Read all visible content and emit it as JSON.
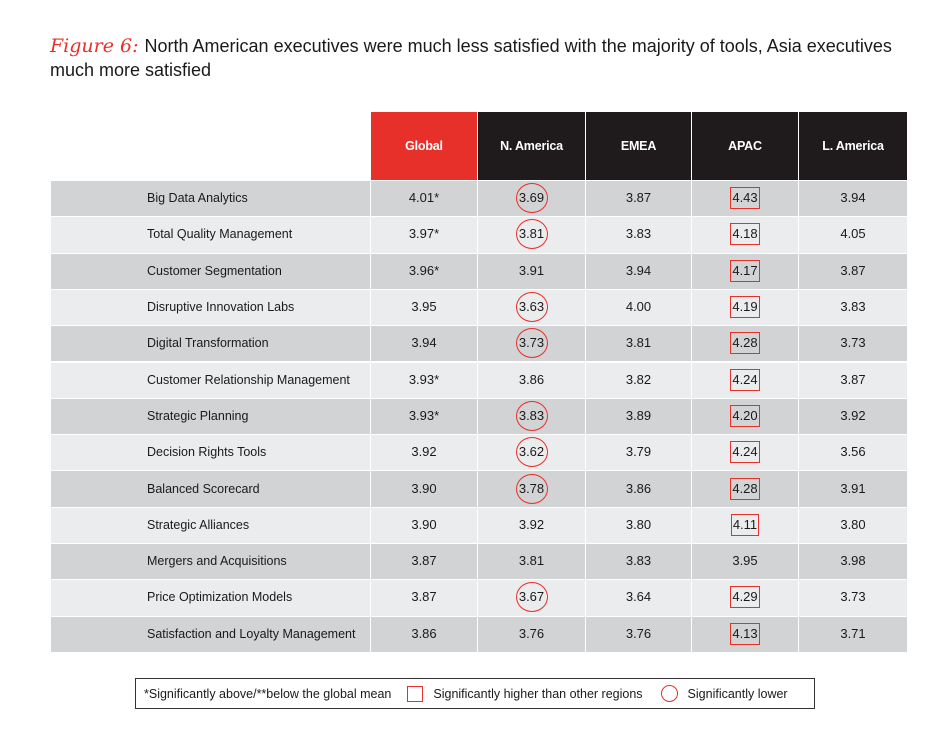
{
  "title": {
    "figure_label": "Figure 6:",
    "text": "North American executives were much less satisfied with the majority of tools, Asia executives much more satisfied"
  },
  "chart_data": {
    "type": "table",
    "columns": [
      "Global",
      "N. America",
      "EMEA",
      "APAC",
      "L. America"
    ],
    "rows": [
      {
        "label": "Big Data Analytics",
        "values": [
          "4.01*",
          "3.69",
          "3.87",
          "4.43",
          "3.94"
        ],
        "marks": [
          "",
          "circle",
          "",
          "box",
          ""
        ]
      },
      {
        "label": "Total Quality Management",
        "values": [
          "3.97*",
          "3.81",
          "3.83",
          "4.18",
          "4.05"
        ],
        "marks": [
          "",
          "circle",
          "",
          "box",
          ""
        ]
      },
      {
        "label": "Customer Segmentation",
        "values": [
          "3.96*",
          "3.91",
          "3.94",
          "4.17",
          "3.87"
        ],
        "marks": [
          "",
          "",
          "",
          "box",
          ""
        ]
      },
      {
        "label": "Disruptive Innovation Labs",
        "values": [
          "3.95",
          "3.63",
          "4.00",
          "4.19",
          "3.83"
        ],
        "marks": [
          "",
          "circle",
          "",
          "box",
          ""
        ]
      },
      {
        "label": "Digital Transformation",
        "values": [
          "3.94",
          "3.73",
          "3.81",
          "4.28",
          "3.73"
        ],
        "marks": [
          "",
          "circle",
          "",
          "box",
          ""
        ]
      },
      {
        "label": "Customer Relationship Management",
        "values": [
          "3.93*",
          "3.86",
          "3.82",
          "4.24",
          "3.87"
        ],
        "marks": [
          "",
          "",
          "",
          "box",
          ""
        ]
      },
      {
        "label": "Strategic Planning",
        "values": [
          "3.93*",
          "3.83",
          "3.89",
          "4.20",
          "3.92"
        ],
        "marks": [
          "",
          "circle",
          "",
          "box",
          ""
        ]
      },
      {
        "label": "Decision Rights Tools",
        "values": [
          "3.92",
          "3.62",
          "3.79",
          "4.24",
          "3.56"
        ],
        "marks": [
          "",
          "circle",
          "",
          "box",
          ""
        ]
      },
      {
        "label": "Balanced Scorecard",
        "values": [
          "3.90",
          "3.78",
          "3.86",
          "4.28",
          "3.91"
        ],
        "marks": [
          "",
          "circle",
          "",
          "box",
          ""
        ]
      },
      {
        "label": "Strategic Alliances",
        "values": [
          "3.90",
          "3.92",
          "3.80",
          "4.11",
          "3.80"
        ],
        "marks": [
          "",
          "",
          "",
          "box",
          ""
        ]
      },
      {
        "label": "Mergers and Acquisitions",
        "values": [
          "3.87",
          "3.81",
          "3.83",
          "3.95",
          "3.98"
        ],
        "marks": [
          "",
          "",
          "",
          "",
          ""
        ]
      },
      {
        "label": "Price Optimization Models",
        "values": [
          "3.87",
          "3.67",
          "3.64",
          "4.29",
          "3.73"
        ],
        "marks": [
          "",
          "circle",
          "",
          "box",
          ""
        ]
      },
      {
        "label": "Satisfaction and Loyalty Management",
        "values": [
          "3.86",
          "3.76",
          "3.76",
          "4.13",
          "3.71"
        ],
        "marks": [
          "",
          "",
          "",
          "box",
          ""
        ]
      }
    ]
  },
  "legend": {
    "note": "*Significantly above/**below the global mean",
    "box_label": "Significantly higher than other regions",
    "circle_label": "Significantly lower"
  },
  "colors": {
    "accent": "#e8302a",
    "header_dark": "#1f1b1c",
    "row_dark": "#d2d3d5",
    "row_light": "#ebecee"
  }
}
